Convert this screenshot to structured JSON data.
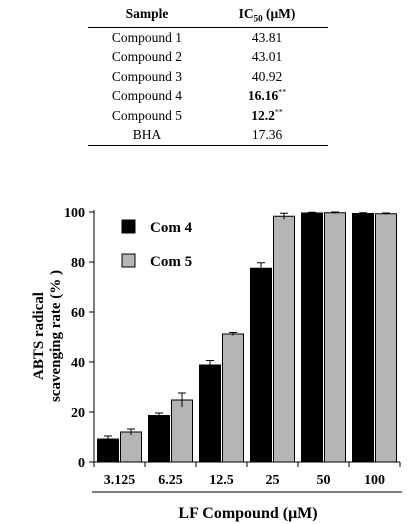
{
  "table": {
    "header": {
      "col1": "Sample",
      "col2_main": "IC",
      "col2_sub": "50",
      "col2_unit": " (μM)"
    },
    "rows": [
      {
        "sample": "Compound 1",
        "value": "43.81",
        "mark": "",
        "bold": false
      },
      {
        "sample": "Compound 2",
        "value": "43.01",
        "mark": "",
        "bold": false
      },
      {
        "sample": "Compound 3",
        "value": "40.92",
        "mark": "",
        "bold": false
      },
      {
        "sample": "Compound 4",
        "value": "16.16",
        "mark": "**",
        "bold": true
      },
      {
        "sample": "Compound 5",
        "value": "12.2",
        "mark": "**",
        "bold": true
      },
      {
        "sample": "BHA",
        "value": "17.36",
        "mark": "",
        "bold": false
      }
    ]
  },
  "chart_data": {
    "type": "bar",
    "categories": [
      "3.125",
      "6.25",
      "12.5",
      "25",
      "50",
      "100"
    ],
    "series": [
      {
        "name": "Com 4",
        "color": "#000000",
        "values": [
          9.2,
          18.6,
          38.8,
          77.5,
          99.6,
          99.4
        ],
        "errors": [
          1.2,
          1.0,
          1.8,
          2.2,
          0.3,
          0.3
        ]
      },
      {
        "name": "Com 5",
        "color": "#b5b5b5",
        "values": [
          12.0,
          24.8,
          51.2,
          98.3,
          99.7,
          99.3
        ],
        "errors": [
          1.2,
          2.8,
          0.6,
          1.2,
          0.3,
          0.3
        ]
      }
    ],
    "ylim": [
      0,
      100
    ],
    "yticks": [
      0,
      20,
      40,
      60,
      80,
      100
    ],
    "ylabel_line1": "ABTS radical",
    "ylabel_line2": "scavenging rate (% )",
    "xlabel": "LF Compound (μM)",
    "legend_position": "top-left",
    "grid": false
  }
}
